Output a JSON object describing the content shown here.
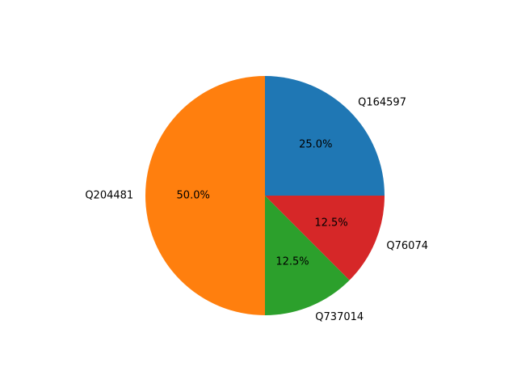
{
  "chart_data": {
    "type": "pie",
    "title": "",
    "labels": [
      "Q164597",
      "Q204481",
      "Q737014",
      "Q76074"
    ],
    "values": [
      25.0,
      50.0,
      12.5,
      12.5
    ],
    "percent_labels": [
      "25.0%",
      "50.0%",
      "12.5%",
      "12.5%"
    ],
    "colors": [
      "#1f77b4",
      "#ff7f0e",
      "#2ca02c",
      "#d62728"
    ],
    "start_angle_deg": 0,
    "direction": "counterclockwise",
    "legend": "none"
  }
}
